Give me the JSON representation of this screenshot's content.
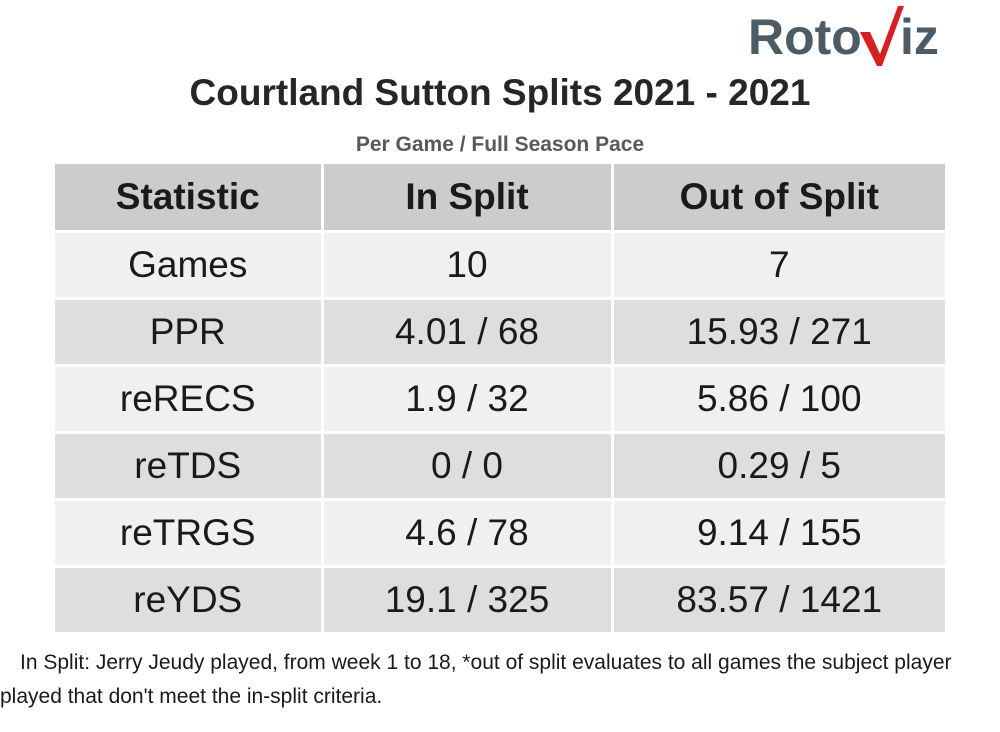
{
  "logo": {
    "text": "RotoViz",
    "part1": "Roto",
    "part2": "iz",
    "grey": "#4d5b66",
    "red": "#d42020"
  },
  "title": "Courtland Sutton Splits 2021 - 2021",
  "subtitle": "Per Game / Full Season Pace",
  "chart_data": {
    "type": "table",
    "columns": [
      "Statistic",
      "In Split",
      "Out of Split"
    ],
    "rows": [
      {
        "stat": "Games",
        "in_split": "10",
        "out_split": "7"
      },
      {
        "stat": "PPR",
        "in_split": "4.01 / 68",
        "out_split": "15.93 / 271"
      },
      {
        "stat": "reRECS",
        "in_split": "1.9 / 32",
        "out_split": "5.86 / 100"
      },
      {
        "stat": "reTDS",
        "in_split": "0 / 0",
        "out_split": "0.29 / 5"
      },
      {
        "stat": "reTRGS",
        "in_split": "4.6 / 78",
        "out_split": "9.14 / 155"
      },
      {
        "stat": "reYDS",
        "in_split": "19.1 / 325",
        "out_split": "83.57 / 1421"
      }
    ]
  },
  "footnote": "In Split: Jerry Jeudy played, from week 1 to 18,  *out of split evaluates to all games the subject player played that don't meet the in-split criteria."
}
